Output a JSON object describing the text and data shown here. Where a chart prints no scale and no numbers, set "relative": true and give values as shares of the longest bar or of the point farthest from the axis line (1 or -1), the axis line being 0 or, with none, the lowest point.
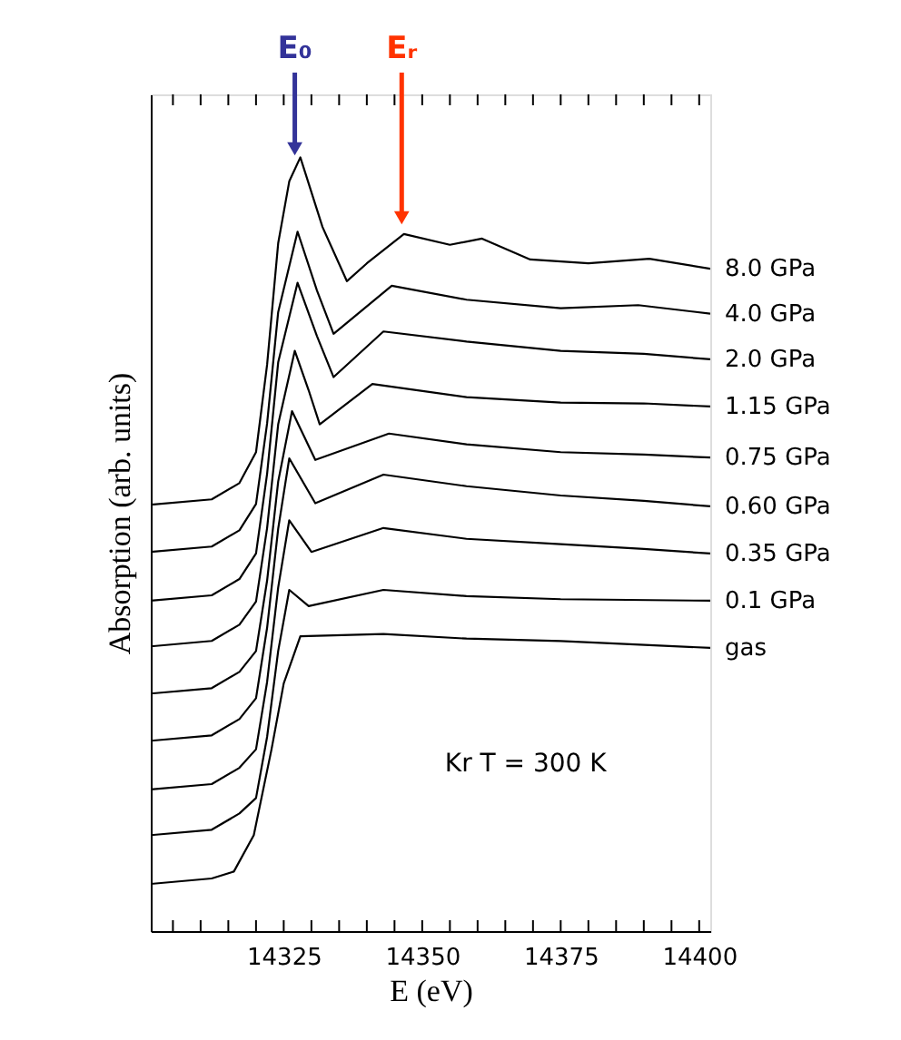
{
  "chart_data": {
    "type": "line",
    "relative": true,
    "xlabel": "E (eV)",
    "ylabel": "Absorption (arb. units)",
    "xlim": [
      14301,
      14402
    ],
    "xticks": [
      {
        "value": 14305,
        "label": null
      },
      {
        "value": 14310,
        "label": null
      },
      {
        "value": 14315,
        "label": null
      },
      {
        "value": 14320,
        "label": null
      },
      14325,
      {
        "value": 14330,
        "label": null
      },
      {
        "value": 14335,
        "label": null
      },
      {
        "value": 14340,
        "label": null
      },
      {
        "value": 14345,
        "label": null
      },
      14350,
      {
        "value": 14355,
        "label": null
      },
      {
        "value": 14360,
        "label": null
      },
      {
        "value": 14365,
        "label": null
      },
      {
        "value": 14370,
        "label": null
      },
      14375,
      {
        "value": 14380,
        "label": null
      },
      {
        "value": 14385,
        "label": null
      },
      {
        "value": 14390,
        "label": null
      },
      {
        "value": 14395,
        "label": null
      },
      14400
    ],
    "series": [
      {
        "name": "8.0  GPa",
        "color": "#000000",
        "x": [
          14301,
          14312,
          14317,
          14320,
          14322,
          14324,
          14326,
          14328,
          14332,
          14336.4,
          14340,
          14346.7,
          14355,
          14360.8,
          14369.5,
          14380,
          14391,
          14402
        ],
        "values": [
          0.551,
          0.558,
          0.579,
          0.619,
          0.732,
          0.889,
          0.969,
          1.0,
          0.91,
          0.84,
          0.863,
          0.901,
          0.887,
          0.895,
          0.868,
          0.863,
          0.869,
          0.856
        ]
      },
      {
        "name": "4.0  GPa",
        "color": "#000000",
        "x": [
          14301,
          14312,
          14317,
          14320,
          14322,
          14324,
          14327.5,
          14331,
          14334,
          14344.5,
          14358,
          14375,
          14389,
          14402
        ],
        "values": [
          0.49,
          0.497,
          0.518,
          0.552,
          0.656,
          0.8,
          0.904,
          0.828,
          0.772,
          0.834,
          0.816,
          0.805,
          0.809,
          0.798
        ]
      },
      {
        "name": "2.0  GPa",
        "color": "#000000",
        "x": [
          14301,
          14312,
          14317,
          14320,
          14322,
          14324,
          14327.5,
          14331,
          14334,
          14343,
          14358,
          14375,
          14390,
          14402
        ],
        "values": [
          0.427,
          0.434,
          0.455,
          0.488,
          0.591,
          0.735,
          0.838,
          0.769,
          0.716,
          0.775,
          0.762,
          0.75,
          0.746,
          0.739
        ]
      },
      {
        "name": "1.15  GPa",
        "color": "#000000",
        "x": [
          14301,
          14312,
          14317,
          14320,
          14322,
          14324,
          14327,
          14329.5,
          14331.5,
          14341,
          14358,
          14375,
          14390,
          14402
        ],
        "values": [
          0.368,
          0.375,
          0.396,
          0.426,
          0.521,
          0.655,
          0.75,
          0.699,
          0.655,
          0.707,
          0.69,
          0.683,
          0.682,
          0.678
        ]
      },
      {
        "name": "0.75  GPa",
        "color": "#000000",
        "x": [
          14301,
          14312,
          14317,
          14320,
          14322,
          14324,
          14326.5,
          14330.7,
          14344,
          14358,
          14375,
          14390,
          14402
        ],
        "values": [
          0.307,
          0.314,
          0.335,
          0.362,
          0.453,
          0.581,
          0.672,
          0.609,
          0.643,
          0.629,
          0.619,
          0.616,
          0.612
        ]
      },
      {
        "name": "0.60  GPa",
        "color": "#000000",
        "x": [
          14301,
          14312,
          14317,
          14320,
          14322,
          14324,
          14326,
          14330.7,
          14343,
          14358,
          14375,
          14390,
          14402
        ],
        "values": [
          0.246,
          0.253,
          0.274,
          0.301,
          0.392,
          0.52,
          0.611,
          0.553,
          0.59,
          0.575,
          0.563,
          0.556,
          0.549
        ]
      },
      {
        "name": "0.35  GPa",
        "color": "#000000",
        "x": [
          14301,
          14312,
          14317,
          14320,
          14322,
          14324,
          14326,
          14330,
          14343,
          14358,
          14375,
          14390,
          14402
        ],
        "values": [
          0.183,
          0.19,
          0.211,
          0.235,
          0.322,
          0.444,
          0.531,
          0.49,
          0.521,
          0.507,
          0.5,
          0.494,
          0.488
        ]
      },
      {
        "name": "0.1   GPa",
        "color": "#000000",
        "x": [
          14301,
          14312,
          14317,
          14320,
          14322,
          14324,
          14326,
          14329.5,
          14343,
          14358,
          14375,
          14402
        ],
        "values": [
          0.124,
          0.131,
          0.152,
          0.172,
          0.251,
          0.362,
          0.441,
          0.42,
          0.441,
          0.433,
          0.429,
          0.427
        ]
      },
      {
        "name": "gas",
        "color": "#000000",
        "x": [
          14301,
          14312,
          14316,
          14319.6,
          14322.8,
          14325,
          14328,
          14343,
          14358,
          14375,
          14402
        ],
        "values": [
          0.061,
          0.068,
          0.077,
          0.124,
          0.235,
          0.32,
          0.381,
          0.384,
          0.378,
          0.375,
          0.366
        ]
      }
    ],
    "annotations": [
      {
        "text": "E₀",
        "x": 14327,
        "y": 1.011
      },
      {
        "text": "Eᵣ",
        "x": 14346.3,
        "y": 0.922
      },
      "Kr T = 300 K"
    ]
  }
}
